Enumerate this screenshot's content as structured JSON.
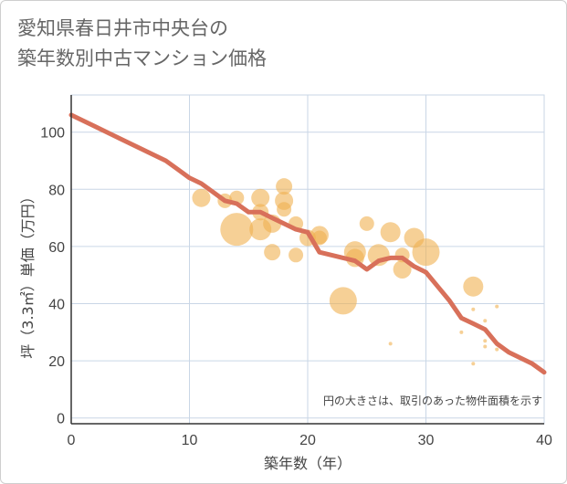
{
  "title": {
    "line1": "愛知県春日井市中央台の",
    "line2": "築年数別中古マンション価格"
  },
  "chart_data": {
    "type": "scatter",
    "xlabel": "築年数（年）",
    "ylabel": "坪（3.3㎡）単価（万円）",
    "annotation": "円の大きさは、取引のあった物件面積を示す",
    "xlim": [
      0,
      40
    ],
    "ylim": [
      -2,
      113
    ],
    "xticks": [
      0,
      10,
      20,
      30,
      40
    ],
    "yticks": [
      0,
      20,
      40,
      60,
      80,
      100
    ],
    "grid": true,
    "colors": {
      "bubble": "#f0b050",
      "line": "#d8705a",
      "grid": "#c9d6e6",
      "axis": "#333333",
      "tick_text": "#444444"
    },
    "series": [
      {
        "kind": "bubbles",
        "points": [
          {
            "x": 11,
            "y": 77,
            "size": 10
          },
          {
            "x": 13,
            "y": 76,
            "size": 8
          },
          {
            "x": 14,
            "y": 77,
            "size": 8
          },
          {
            "x": 14,
            "y": 66,
            "size": 18
          },
          {
            "x": 16,
            "y": 77,
            "size": 10
          },
          {
            "x": 16,
            "y": 66,
            "size": 12
          },
          {
            "x": 16,
            "y": 72,
            "size": 9
          },
          {
            "x": 17,
            "y": 68,
            "size": 10
          },
          {
            "x": 17,
            "y": 58,
            "size": 9
          },
          {
            "x": 18,
            "y": 81,
            "size": 9
          },
          {
            "x": 18,
            "y": 76,
            "size": 10
          },
          {
            "x": 18,
            "y": 73,
            "size": 8
          },
          {
            "x": 19,
            "y": 68,
            "size": 8
          },
          {
            "x": 19,
            "y": 57,
            "size": 8
          },
          {
            "x": 20,
            "y": 63,
            "size": 9
          },
          {
            "x": 21,
            "y": 64,
            "size": 10
          },
          {
            "x": 21,
            "y": 63,
            "size": 8
          },
          {
            "x": 23,
            "y": 41,
            "size": 15
          },
          {
            "x": 24,
            "y": 56,
            "size": 10
          },
          {
            "x": 24,
            "y": 58,
            "size": 12
          },
          {
            "x": 25,
            "y": 68,
            "size": 8
          },
          {
            "x": 26,
            "y": 57,
            "size": 12
          },
          {
            "x": 27,
            "y": 65,
            "size": 11
          },
          {
            "x": 27,
            "y": 26,
            "size": 2
          },
          {
            "x": 28,
            "y": 52,
            "size": 10
          },
          {
            "x": 28,
            "y": 57,
            "size": 8
          },
          {
            "x": 29,
            "y": 63,
            "size": 11
          },
          {
            "x": 30,
            "y": 58,
            "size": 15
          },
          {
            "x": 33,
            "y": 30,
            "size": 2
          },
          {
            "x": 34,
            "y": 46,
            "size": 11
          },
          {
            "x": 34,
            "y": 38,
            "size": 2
          },
          {
            "x": 34,
            "y": 19,
            "size": 2
          },
          {
            "x": 35,
            "y": 34,
            "size": 2
          },
          {
            "x": 35,
            "y": 27,
            "size": 2
          },
          {
            "x": 35,
            "y": 25,
            "size": 2
          },
          {
            "x": 36,
            "y": 39,
            "size": 2
          },
          {
            "x": 36,
            "y": 24,
            "size": 2
          }
        ]
      },
      {
        "kind": "line",
        "x": [
          0,
          2,
          4,
          6,
          8,
          9,
          10,
          11,
          12,
          13,
          14,
          15,
          16,
          17,
          18,
          19,
          20,
          21,
          22,
          23,
          24,
          25,
          26,
          27,
          28,
          29,
          30,
          31,
          32,
          33,
          34,
          35,
          36,
          37,
          38,
          39,
          40
        ],
        "y": [
          106,
          102,
          98,
          94,
          90,
          87,
          84,
          82,
          79,
          76,
          75,
          72,
          72,
          70,
          68,
          66,
          65,
          58,
          57,
          56,
          55,
          52,
          55,
          56,
          56,
          53,
          51,
          46,
          41,
          35,
          33,
          31,
          26,
          23,
          21,
          19,
          16
        ]
      }
    ]
  }
}
